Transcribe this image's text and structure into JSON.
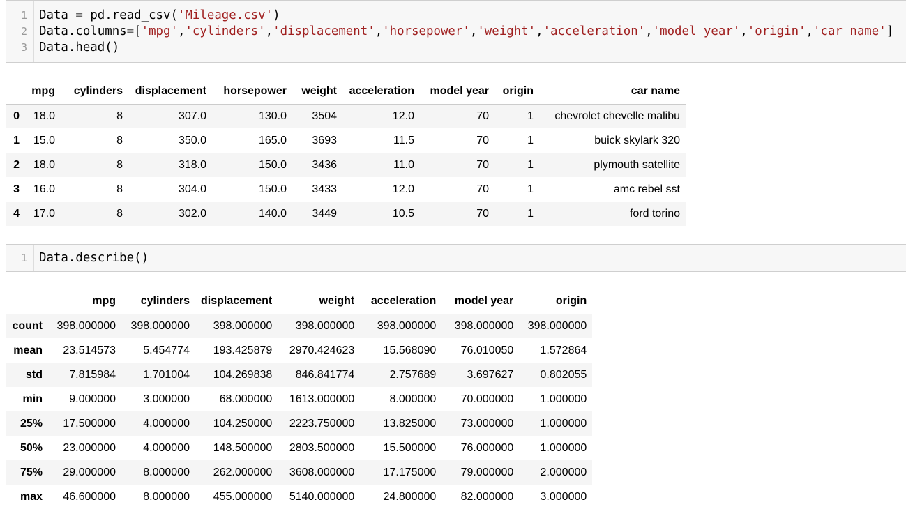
{
  "cell1": {
    "lines": [
      {
        "num": "1",
        "parts": [
          [
            "Data ",
            ""
          ],
          [
            "=",
            "op"
          ],
          [
            " pd.read_csv(",
            ""
          ],
          [
            "'Mileage.csv'",
            "str"
          ],
          [
            ")",
            ""
          ]
        ]
      },
      {
        "num": "2",
        "parts": [
          [
            "Data.columns",
            ""
          ],
          [
            "=",
            "op"
          ],
          [
            "[",
            ""
          ],
          [
            "'mpg'",
            "str"
          ],
          [
            ",",
            ""
          ],
          [
            "'cylinders'",
            "str"
          ],
          [
            ",",
            ""
          ],
          [
            "'displacement'",
            "str"
          ],
          [
            ",",
            ""
          ],
          [
            "'horsepower'",
            "str"
          ],
          [
            ",",
            ""
          ],
          [
            "'weight'",
            "str"
          ],
          [
            ",",
            ""
          ],
          [
            "'acceleration'",
            "str"
          ],
          [
            ",",
            ""
          ],
          [
            "'model year'",
            "str"
          ],
          [
            ",",
            ""
          ],
          [
            "'origin'",
            "str"
          ],
          [
            ",",
            ""
          ],
          [
            "'car name'",
            "str"
          ],
          [
            "]",
            ""
          ]
        ]
      },
      {
        "num": "3",
        "parts": [
          [
            "Data.head()",
            ""
          ]
        ]
      }
    ]
  },
  "head_table": {
    "columns": [
      "",
      "mpg",
      "cylinders",
      "displacement",
      "horsepower",
      "weight",
      "acceleration",
      "model year",
      "origin",
      "car name"
    ],
    "rows": [
      [
        "0",
        "18.0",
        "8",
        "307.0",
        "130.0",
        "3504",
        "12.0",
        "70",
        "1",
        "chevrolet chevelle malibu"
      ],
      [
        "1",
        "15.0",
        "8",
        "350.0",
        "165.0",
        "3693",
        "11.5",
        "70",
        "1",
        "buick skylark 320"
      ],
      [
        "2",
        "18.0",
        "8",
        "318.0",
        "150.0",
        "3436",
        "11.0",
        "70",
        "1",
        "plymouth satellite"
      ],
      [
        "3",
        "16.0",
        "8",
        "304.0",
        "150.0",
        "3433",
        "12.0",
        "70",
        "1",
        "amc rebel sst"
      ],
      [
        "4",
        "17.0",
        "8",
        "302.0",
        "140.0",
        "3449",
        "10.5",
        "70",
        "1",
        "ford torino"
      ]
    ]
  },
  "cell2": {
    "lines": [
      {
        "num": "1",
        "parts": [
          [
            "Data.describe()",
            ""
          ]
        ]
      }
    ]
  },
  "describe_table": {
    "columns": [
      "",
      "mpg",
      "cylinders",
      "displacement",
      "weight",
      "acceleration",
      "model year",
      "origin"
    ],
    "rows": [
      [
        "count",
        "398.000000",
        "398.000000",
        "398.000000",
        "398.000000",
        "398.000000",
        "398.000000",
        "398.000000"
      ],
      [
        "mean",
        "23.514573",
        "5.454774",
        "193.425879",
        "2970.424623",
        "15.568090",
        "76.010050",
        "1.572864"
      ],
      [
        "std",
        "7.815984",
        "1.701004",
        "104.269838",
        "846.841774",
        "2.757689",
        "3.697627",
        "0.802055"
      ],
      [
        "min",
        "9.000000",
        "3.000000",
        "68.000000",
        "1613.000000",
        "8.000000",
        "70.000000",
        "1.000000"
      ],
      [
        "25%",
        "17.500000",
        "4.000000",
        "104.250000",
        "2223.750000",
        "13.825000",
        "73.000000",
        "1.000000"
      ],
      [
        "50%",
        "23.000000",
        "4.000000",
        "148.500000",
        "2803.500000",
        "15.500000",
        "76.000000",
        "1.000000"
      ],
      [
        "75%",
        "29.000000",
        "8.000000",
        "262.000000",
        "3608.000000",
        "17.175000",
        "79.000000",
        "2.000000"
      ],
      [
        "max",
        "46.600000",
        "8.000000",
        "455.000000",
        "5140.000000",
        "24.800000",
        "82.000000",
        "3.000000"
      ]
    ]
  }
}
